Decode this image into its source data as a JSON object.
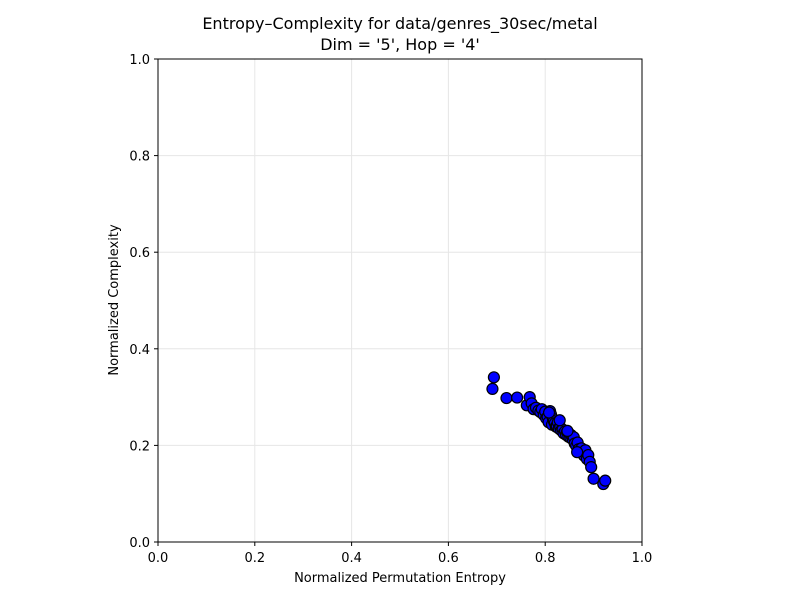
{
  "chart_data": {
    "type": "scatter",
    "title": "Entropy–Complexity for data/genres_30sec/metal",
    "subtitle": "Dim = '5', Hop = '4'",
    "xlabel": "Normalized Permutation Entropy",
    "ylabel": "Normalized Complexity",
    "xlim": [
      0.0,
      1.0
    ],
    "ylim": [
      0.0,
      1.0
    ],
    "xticks": [
      "0.0",
      "0.2",
      "0.4",
      "0.6",
      "0.8",
      "1.0"
    ],
    "yticks": [
      "0.0",
      "0.2",
      "0.4",
      "0.6",
      "0.8",
      "1.0"
    ],
    "grid": true,
    "legend": "none",
    "marker_color": "#0000ff",
    "marker_edge_color": "#000000",
    "points": [
      [
        0.694,
        0.341
      ],
      [
        0.691,
        0.317
      ],
      [
        0.72,
        0.298
      ],
      [
        0.742,
        0.299
      ],
      [
        0.762,
        0.283
      ],
      [
        0.768,
        0.3
      ],
      [
        0.772,
        0.287
      ],
      [
        0.776,
        0.275
      ],
      [
        0.781,
        0.278
      ],
      [
        0.786,
        0.272
      ],
      [
        0.79,
        0.269
      ],
      [
        0.793,
        0.275
      ],
      [
        0.797,
        0.263
      ],
      [
        0.8,
        0.27
      ],
      [
        0.802,
        0.256
      ],
      [
        0.805,
        0.259
      ],
      [
        0.807,
        0.248
      ],
      [
        0.81,
        0.271
      ],
      [
        0.812,
        0.264
      ],
      [
        0.814,
        0.243
      ],
      [
        0.816,
        0.255
      ],
      [
        0.818,
        0.25
      ],
      [
        0.82,
        0.246
      ],
      [
        0.822,
        0.239
      ],
      [
        0.824,
        0.24
      ],
      [
        0.826,
        0.248
      ],
      [
        0.828,
        0.235
      ],
      [
        0.831,
        0.238
      ],
      [
        0.833,
        0.231
      ],
      [
        0.836,
        0.233
      ],
      [
        0.838,
        0.225
      ],
      [
        0.841,
        0.229
      ],
      [
        0.843,
        0.222
      ],
      [
        0.845,
        0.228
      ],
      [
        0.848,
        0.218
      ],
      [
        0.85,
        0.224
      ],
      [
        0.852,
        0.216
      ],
      [
        0.854,
        0.221
      ],
      [
        0.857,
        0.212
      ],
      [
        0.859,
        0.217
      ],
      [
        0.861,
        0.204
      ],
      [
        0.864,
        0.199
      ],
      [
        0.867,
        0.206
      ],
      [
        0.869,
        0.192
      ],
      [
        0.872,
        0.188
      ],
      [
        0.875,
        0.194
      ],
      [
        0.878,
        0.185
      ],
      [
        0.88,
        0.179
      ],
      [
        0.883,
        0.19
      ],
      [
        0.886,
        0.172
      ],
      [
        0.889,
        0.18
      ],
      [
        0.892,
        0.166
      ],
      [
        0.895,
        0.155
      ],
      [
        0.9,
        0.131
      ],
      [
        0.92,
        0.12
      ],
      [
        0.924,
        0.127
      ],
      [
        0.866,
        0.186
      ],
      [
        0.846,
        0.23
      ],
      [
        0.83,
        0.252
      ],
      [
        0.808,
        0.268
      ]
    ]
  }
}
